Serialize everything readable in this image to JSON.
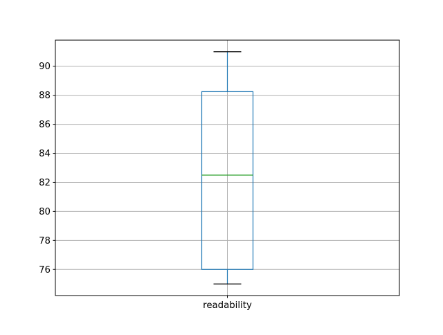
{
  "figure": {
    "background": "#ffffff"
  },
  "chart_data": {
    "type": "boxplot",
    "title": "",
    "categories": [
      "readability"
    ],
    "series": [
      {
        "name": "readability",
        "whisker_low": 75,
        "q1": 76,
        "median": 82.5,
        "q3": 88.25,
        "whisker_high": 91,
        "outliers": []
      }
    ],
    "xlabel": "",
    "ylabel": "",
    "yticks": [
      76,
      78,
      80,
      82,
      84,
      86,
      88,
      90
    ],
    "ylim": [
      74.2,
      91.8
    ],
    "grid": true,
    "legend": false,
    "colors": {
      "box": "#1f77b4",
      "whisker": "#1f77b4",
      "cap": "#000000",
      "median": "#2ca02c",
      "grid": "#b0b0b0",
      "axis": "#000000",
      "tick_label": "#000000",
      "background": "#ffffff"
    }
  }
}
